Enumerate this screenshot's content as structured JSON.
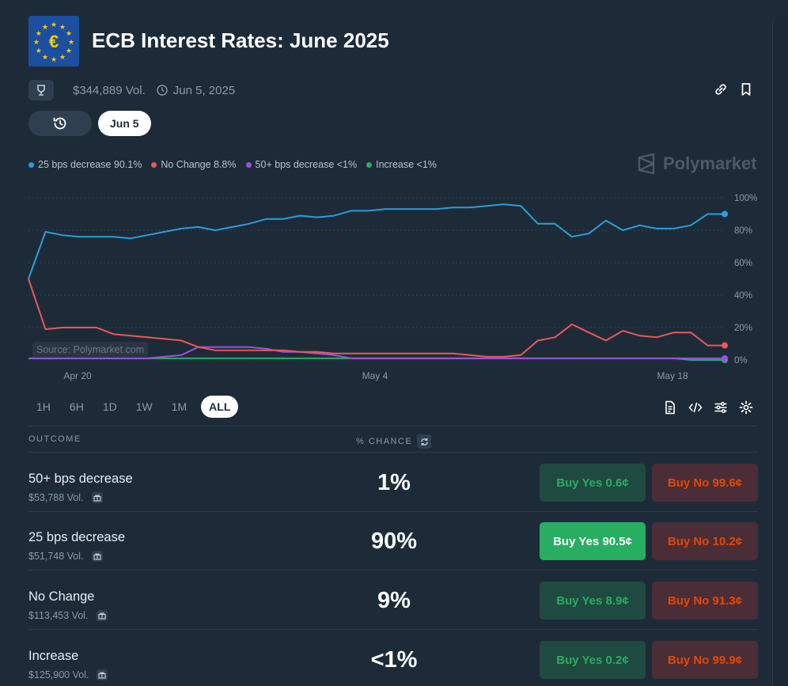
{
  "header": {
    "title": "ECB Interest Rates: June 2025",
    "volume": "$344,889 Vol.",
    "end_date": "Jun 5, 2025",
    "flag_symbol": "€"
  },
  "date_pill": "Jun 5",
  "legend": [
    {
      "label": "25 bps decrease 90.1%",
      "color": "#2d9cdb"
    },
    {
      "label": "No Change 8.8%",
      "color": "#eb5757"
    },
    {
      "label": "50+ bps decrease <1%",
      "color": "#9b51e0"
    },
    {
      "label": "Increase <1%",
      "color": "#27ae60"
    }
  ],
  "brand": "Polymarket",
  "source_label": "Source: Polymarket.com",
  "chart_data": {
    "type": "line",
    "x_ticks": [
      "Apr 20",
      "May 4",
      "May 18"
    ],
    "y_ticks": [
      "100%",
      "80%",
      "60%",
      "40%",
      "20%",
      "0%"
    ],
    "ylim": [
      0,
      100
    ],
    "grid": true,
    "series": [
      {
        "name": "25 bps decrease",
        "color": "#2d9cdb",
        "values": [
          50,
          79,
          77,
          76,
          76,
          76,
          75,
          77,
          79,
          81,
          82,
          80,
          82,
          84,
          87,
          87,
          89,
          88,
          89,
          92,
          92,
          93,
          93,
          93,
          93,
          94,
          94,
          95,
          96,
          95,
          84,
          84,
          76,
          78,
          86,
          80,
          83,
          81,
          81,
          83,
          90,
          90
        ]
      },
      {
        "name": "No Change",
        "color": "#eb5757",
        "values": [
          50,
          19,
          20,
          20,
          20,
          16,
          15,
          14,
          13,
          12,
          8,
          6,
          6,
          6,
          6,
          6,
          5,
          5,
          4,
          4,
          4,
          4,
          4,
          4,
          4,
          4,
          3,
          2,
          2,
          3,
          12,
          14,
          22,
          17,
          12,
          18,
          15,
          14,
          17,
          17,
          9,
          9
        ]
      },
      {
        "name": "50+ bps decrease",
        "color": "#9b51e0",
        "values": [
          1,
          1,
          1,
          1,
          1,
          1,
          1,
          1,
          2,
          3,
          8,
          8,
          8,
          8,
          7,
          5,
          5,
          4,
          3,
          1,
          1,
          1,
          1,
          1,
          1,
          1,
          1,
          1,
          1,
          1,
          1,
          1,
          1,
          1,
          1,
          1,
          1,
          1,
          1,
          1,
          1,
          1
        ]
      },
      {
        "name": "Increase",
        "color": "#27ae60",
        "values": [
          1,
          1,
          1,
          1,
          1,
          1,
          1,
          1,
          1,
          1,
          1,
          1,
          1,
          1,
          1,
          1,
          1,
          1,
          1,
          1,
          1,
          1,
          1,
          1,
          1,
          1,
          1,
          1,
          1,
          1,
          1,
          1,
          1,
          1,
          1,
          1,
          1,
          1,
          1,
          0,
          0,
          0
        ]
      }
    ]
  },
  "ranges": [
    "1H",
    "6H",
    "1D",
    "1W",
    "1M",
    "ALL"
  ],
  "active_range": "ALL",
  "table": {
    "col_outcome": "OUTCOME",
    "col_chance": "% CHANCE",
    "rows": [
      {
        "name": "50+ bps decrease",
        "vol": "$53,788 Vol.",
        "chance": "1%",
        "buy_yes": "Buy Yes 0.6¢",
        "buy_no": "Buy No 99.6¢",
        "highlight": false
      },
      {
        "name": "25 bps decrease",
        "vol": "$51,748 Vol.",
        "chance": "90%",
        "buy_yes": "Buy Yes 90.5¢",
        "buy_no": "Buy No 10.2¢",
        "highlight": true
      },
      {
        "name": "No Change",
        "vol": "$113,453 Vol.",
        "chance": "9%",
        "buy_yes": "Buy Yes 8.9¢",
        "buy_no": "Buy No 91.3¢",
        "highlight": false
      },
      {
        "name": "Increase",
        "vol": "$125,900 Vol.",
        "chance": "<1%",
        "buy_yes": "Buy Yes 0.2¢",
        "buy_no": "Buy No 99.9¢",
        "highlight": false
      }
    ]
  }
}
